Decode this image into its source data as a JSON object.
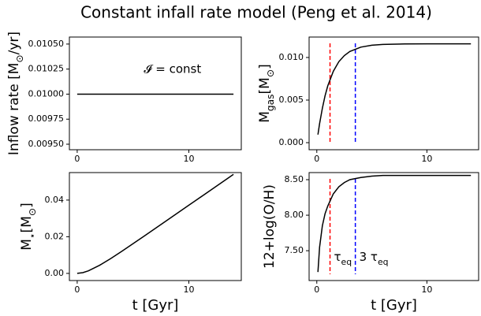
{
  "title": "Constant infall rate model (Peng et al. 2014)",
  "chart_data": [
    {
      "type": "line",
      "ylabel": [
        {
          "text": "Inflow rate [M"
        },
        {
          "text": "⊙",
          "sub": true
        },
        {
          "text": "/yr]"
        }
      ],
      "x": [
        0,
        14
      ],
      "values": [
        0.01,
        0.01
      ],
      "color": "#000000",
      "xlim": [
        -0.7,
        14.7
      ],
      "ylim": [
        0.009445,
        0.01057
      ],
      "xticks": [
        0,
        10
      ],
      "yticks": [
        {
          "value": 0.0095,
          "label": "0.00950"
        },
        {
          "value": 0.00975,
          "label": "0.00975"
        },
        {
          "value": 0.01,
          "label": "0.01000"
        },
        {
          "value": 0.01025,
          "label": "0.01025"
        },
        {
          "value": 0.0105,
          "label": "0.01050"
        }
      ],
      "annotation": "𝓘 = const"
    },
    {
      "type": "line",
      "ylabel": [
        {
          "text": "M"
        },
        {
          "text": "gas",
          "sub": true
        },
        {
          "text": "[M"
        },
        {
          "text": "⊙",
          "sub": true
        },
        {
          "text": "]"
        }
      ],
      "x": [
        0.1,
        0.25,
        0.5,
        0.75,
        1,
        1.5,
        2,
        2.5,
        3,
        4,
        5,
        6,
        8,
        10,
        12,
        14
      ],
      "values": [
        0.00095,
        0.00223,
        0.00403,
        0.00549,
        0.00667,
        0.00838,
        0.0095,
        0.01023,
        0.01071,
        0.01122,
        0.01144,
        0.01153,
        0.01159,
        0.0116,
        0.0116,
        0.0116
      ],
      "color": "#000000",
      "xlim": [
        -0.7,
        14.7
      ],
      "ylim": [
        -0.00083,
        0.0124
      ],
      "xticks": [
        0,
        10
      ],
      "yticks": [
        {
          "value": 0,
          "label": "0.000"
        },
        {
          "value": 0.005,
          "label": "0.005"
        },
        {
          "value": 0.01,
          "label": "0.010"
        }
      ],
      "vlines": [
        {
          "x": 1.2,
          "color": "#ff0000"
        },
        {
          "x": 3.5,
          "color": "#0000ff"
        }
      ]
    },
    {
      "type": "line",
      "ylabel": [
        {
          "text": "M"
        },
        {
          "text": "⋆",
          "sub": true
        },
        {
          "text": "[M"
        },
        {
          "text": "⊙",
          "sub": true
        },
        {
          "text": "]"
        }
      ],
      "xlabel": "t [Gyr]",
      "x": [
        0,
        0.5,
        1,
        2,
        3,
        4,
        6,
        8,
        10,
        12,
        14
      ],
      "values": [
        0,
        0.00039,
        0.00138,
        0.00439,
        0.00808,
        0.01207,
        0.02036,
        0.02876,
        0.03718,
        0.04559,
        0.05401
      ],
      "color": "#000000",
      "xlim": [
        -0.7,
        14.7
      ],
      "ylim": [
        -0.0039,
        0.055
      ],
      "xticks": [
        0,
        10
      ],
      "yticks": [
        {
          "value": 0,
          "label": "0.00"
        },
        {
          "value": 0.02,
          "label": "0.02"
        },
        {
          "value": 0.04,
          "label": "0.04"
        }
      ]
    },
    {
      "type": "line",
      "ylabel": [
        {
          "text": "12+log(O/H)"
        }
      ],
      "xlabel": "t [Gyr]",
      "x": [
        0.1,
        0.25,
        0.5,
        0.75,
        1,
        1.5,
        2,
        2.5,
        3,
        4,
        5,
        6,
        8,
        10,
        12,
        14
      ],
      "values": [
        7.2,
        7.55,
        7.85,
        8.02,
        8.13,
        8.3,
        8.4,
        8.46,
        8.5,
        8.53,
        8.55,
        8.56,
        8.56,
        8.56,
        8.56,
        8.56
      ],
      "color": "#000000",
      "xlim": [
        -0.7,
        14.7
      ],
      "ylim": [
        7.08,
        8.6
      ],
      "xticks": [
        0,
        10
      ],
      "yticks": [
        {
          "value": 7.5,
          "label": "7.50"
        },
        {
          "value": 8,
          "label": "8.00"
        },
        {
          "value": 8.5,
          "label": "8.50"
        }
      ],
      "vlines": [
        {
          "x": 1.2,
          "color": "#ff0000",
          "label": [
            {
              "text": "τ"
            },
            {
              "text": "eq",
              "sub": true
            }
          ]
        },
        {
          "x": 3.5,
          "color": "#0000ff",
          "label": [
            {
              "text": "3 τ"
            },
            {
              "text": "eq",
              "sub": true
            }
          ]
        }
      ]
    }
  ]
}
